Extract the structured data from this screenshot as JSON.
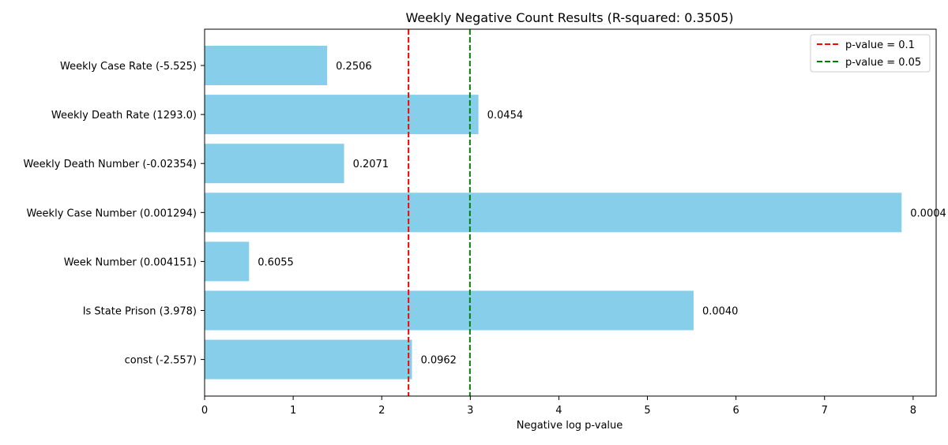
{
  "chart_data": {
    "type": "bar",
    "orientation": "horizontal",
    "title": "Weekly Negative Count Results (R-squared: 0.3505)",
    "xlabel": "Negative log p-value",
    "ylabel": "",
    "xlim": [
      0,
      8.26
    ],
    "xticks": [
      "0",
      "1",
      "2",
      "3",
      "4",
      "5",
      "6",
      "7",
      "8"
    ],
    "categories": [
      "Weekly Case Rate (-5.525)",
      "Weekly Death Rate (1293.0)",
      "Weekly Death Number (-0.02354)",
      "Weekly Case Number (0.001294)",
      "Week Number (0.004151)",
      "Is State Prison (3.978)",
      "const (-2.557)"
    ],
    "values": [
      1.384,
      3.092,
      1.575,
      7.87,
      0.502,
      5.521,
      2.341
    ],
    "bar_labels": [
      "0.2506",
      "0.0454",
      "0.2071",
      "0.0004",
      "0.6055",
      "0.0040",
      "0.0962"
    ],
    "bar_color": "#87ceeb",
    "reference_lines": [
      {
        "label": "p-value = 0.1",
        "x": 2.3026,
        "color": "#ff0000",
        "style": "dashed"
      },
      {
        "label": "p-value = 0.05",
        "x": 2.9957,
        "color": "#008000",
        "style": "dashed"
      }
    ],
    "legend_position": "top-right",
    "grid": false
  }
}
